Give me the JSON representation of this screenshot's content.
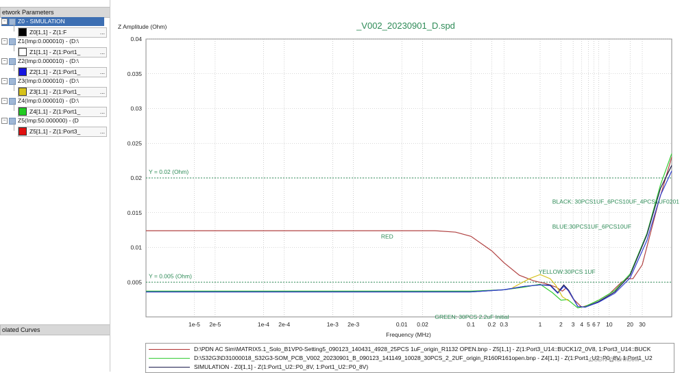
{
  "left_panel": {
    "header": "etwork Parameters",
    "tree": [
      {
        "label": "Z0 - SIMULATION",
        "selected": true
      },
      {
        "sub": "Z0[1,1] - Z(1:F",
        "dots": "...",
        "color": "#000000"
      },
      {
        "label": "Z1(Imp:0.000010) - (D:\\"
      },
      {
        "sub": "Z1[1,1] - Z(1:Port1_",
        "dots": "...",
        "color": "#ffffff"
      },
      {
        "label": "Z2(Imp:0.000010) - (D:\\"
      },
      {
        "sub": "Z2[1,1] - Z(1:Port1_",
        "dots": "...",
        "color": "#1515e0"
      },
      {
        "label": "Z3(Imp:0.000010) - (D:\\"
      },
      {
        "sub": "Z3[1,1] - Z(1:Port1_",
        "dots": "...",
        "color": "#d6c21a"
      },
      {
        "label": "Z4(Imp:0.000010) - (D:\\"
      },
      {
        "sub": "Z4[1,1] - Z(1:Port1_",
        "dots": "...",
        "color": "#22cc22"
      },
      {
        "label": "Z5(Imp:50.000000) - (D"
      },
      {
        "sub": "Z5[1,1] - Z(1:Port3_",
        "dots": "...",
        "color": "#e01010"
      }
    ],
    "isolated_header": "olated Curves"
  },
  "legend": [
    {
      "text": "D:\\PDN AC Sim\\MATRIX5.1_Solo_B1VP0-Setting5_090123_140431_4928_25PCS 1uF_origin_R1132 OPEN.bnp - Z5[1,1] - Z(1:Port3_U14::BUCK1/2_0V8, 1:Port3_U14::BUCK",
      "color": "#b03030"
    },
    {
      "text": "D:\\S32G3\\D31000018_S32G3-SOM_PCB_V002_20230901_B_090123_141149_10028_30PCS_2_2UF_origin_R160R161open.bnp - Z4[1,1] - Z(1:Port1_U2::P0_8V, 1:Port1_U2",
      "color": "#33cc33"
    },
    {
      "text": "SIMULATION - Z0[1,1] - Z(1:Port1_U2::P0_8V, 1:Port1_U2::P0_8V)",
      "color": "#1a1a4a"
    }
  ],
  "watermark": "CSDN @fdHhbow",
  "chart_data": {
    "type": "line",
    "title": "_V002_20230901_D.spd",
    "ylabel": "Z Amplitude (Ohm)",
    "xlabel": "Frequency (MHz)",
    "x_scale": "log",
    "xlim": [
      2e-06,
      80
    ],
    "ylim": [
      0,
      0.04
    ],
    "grid": true,
    "x_ticks": [
      {
        "v": 1e-05,
        "l": "1e-5"
      },
      {
        "v": 2e-05,
        "l": "2e-5"
      },
      {
        "v": 0.0001,
        "l": "1e-4"
      },
      {
        "v": 0.0002,
        "l": "2e-4"
      },
      {
        "v": 0.001,
        "l": "1e-3"
      },
      {
        "v": 0.002,
        "l": "2e-3"
      },
      {
        "v": 0.01,
        "l": "0.01"
      },
      {
        "v": 0.02,
        "l": "0.02"
      },
      {
        "v": 0.1,
        "l": "0.1"
      },
      {
        "v": 0.2,
        "l": "0.2"
      },
      {
        "v": 0.3,
        "l": "0.3"
      },
      {
        "v": 1,
        "l": "1"
      },
      {
        "v": 2,
        "l": "2"
      },
      {
        "v": 3,
        "l": "3"
      },
      {
        "v": 4,
        "l": "4"
      },
      {
        "v": 5,
        "l": "5"
      },
      {
        "v": 6,
        "l": "6"
      },
      {
        "v": 7,
        "l": "7"
      },
      {
        "v": 10,
        "l": "10"
      },
      {
        "v": 20,
        "l": "20"
      },
      {
        "v": 30,
        "l": "30"
      }
    ],
    "y_ticks": [
      {
        "v": 0.005,
        "l": "0.005"
      },
      {
        "v": 0.01,
        "l": "0.01"
      },
      {
        "v": 0.015,
        "l": "0.015"
      },
      {
        "v": 0.02,
        "l": "0.02"
      },
      {
        "v": 0.025,
        "l": "0.025"
      },
      {
        "v": 0.03,
        "l": "0.03"
      },
      {
        "v": 0.035,
        "l": "0.035"
      },
      {
        "v": 0.04,
        "l": "0.04"
      }
    ],
    "reference_lines": [
      {
        "y": 0.02,
        "label": "Y = 0.02 (Ohm)"
      },
      {
        "y": 0.005,
        "label": "Y = 0.005 (Ohm)"
      }
    ],
    "annotations": [
      {
        "x": 0.005,
        "y": 0.0113,
        "text": "RED"
      },
      {
        "x": 1.5,
        "y": 0.0163,
        "text": "BLACK: 30PCS1UF_6PCS10UF_4PCS1UF0201"
      },
      {
        "x": 1.5,
        "y": 0.0127,
        "text": "BLUE:30PCS1UF_6PCS10UF"
      },
      {
        "x": 0.95,
        "y": 0.0062,
        "text": "YELLOW:30PCS 1UF"
      },
      {
        "x": 0.03,
        "y": -0.0003,
        "text": "GREEN: 30PCS 2.2uF Initial"
      }
    ],
    "series": [
      {
        "color": "#b04040",
        "points": [
          [
            2e-06,
            0.0124
          ],
          [
            0.001,
            0.0124
          ],
          [
            0.03,
            0.0124
          ],
          [
            0.06,
            0.0122
          ],
          [
            0.1,
            0.0116
          ],
          [
            0.2,
            0.0095
          ],
          [
            0.3,
            0.0078
          ],
          [
            0.5,
            0.006
          ],
          [
            0.8,
            0.0052
          ],
          [
            1.2,
            0.0048
          ],
          [
            1.7,
            0.0043
          ],
          [
            2.1,
            0.0037
          ],
          [
            2.4,
            0.0042
          ],
          [
            3,
            0.0026
          ],
          [
            4,
            0.0014
          ],
          [
            5,
            0.0017
          ],
          [
            7,
            0.0024
          ],
          [
            10,
            0.0033
          ],
          [
            15,
            0.005
          ],
          [
            18,
            0.0055
          ],
          [
            22,
            0.0055
          ],
          [
            30,
            0.0075
          ],
          [
            50,
            0.016
          ],
          [
            80,
            0.023
          ]
        ]
      },
      {
        "color": "#33cc33",
        "points": [
          [
            2e-06,
            0.0037
          ],
          [
            0.1,
            0.0037
          ],
          [
            0.3,
            0.0039
          ],
          [
            0.6,
            0.0043
          ],
          [
            1,
            0.0047
          ],
          [
            1.5,
            0.0035
          ],
          [
            2,
            0.0024
          ],
          [
            2.5,
            0.0025
          ],
          [
            3.5,
            0.0013
          ],
          [
            4.5,
            0.0015
          ],
          [
            7,
            0.0024
          ],
          [
            12,
            0.0038
          ],
          [
            20,
            0.0062
          ],
          [
            35,
            0.012
          ],
          [
            55,
            0.019
          ],
          [
            80,
            0.0235
          ]
        ]
      },
      {
        "color": "#1a1a4a",
        "points": [
          [
            2e-06,
            0.0036
          ],
          [
            0.1,
            0.0036
          ],
          [
            0.3,
            0.0039
          ],
          [
            0.6,
            0.0044
          ],
          [
            1,
            0.0046
          ],
          [
            1.4,
            0.0046
          ],
          [
            1.8,
            0.0035
          ],
          [
            2.2,
            0.0046
          ],
          [
            2.6,
            0.0038
          ],
          [
            3.5,
            0.0015
          ],
          [
            4.5,
            0.0014
          ],
          [
            7,
            0.0022
          ],
          [
            12,
            0.0036
          ],
          [
            20,
            0.006
          ],
          [
            35,
            0.0118
          ],
          [
            55,
            0.0185
          ],
          [
            80,
            0.0218
          ]
        ]
      },
      {
        "color": "#2f3fd0",
        "points": [
          [
            2e-06,
            0.0036
          ],
          [
            0.1,
            0.0036
          ],
          [
            0.3,
            0.0039
          ],
          [
            0.6,
            0.0044
          ],
          [
            1,
            0.0046
          ],
          [
            1.4,
            0.0045
          ],
          [
            1.8,
            0.0034
          ],
          [
            2.2,
            0.0044
          ],
          [
            2.6,
            0.0037
          ],
          [
            3.5,
            0.0015
          ],
          [
            4.5,
            0.0014
          ],
          [
            7,
            0.0021
          ],
          [
            12,
            0.0034
          ],
          [
            20,
            0.0056
          ],
          [
            35,
            0.011
          ],
          [
            55,
            0.0175
          ],
          [
            80,
            0.021
          ]
        ]
      },
      {
        "color": "#d6c21a",
        "points": [
          [
            0.4,
            0.0042
          ],
          [
            0.7,
            0.0055
          ],
          [
            1,
            0.0061
          ],
          [
            1.4,
            0.0055
          ],
          [
            1.7,
            0.0045
          ],
          [
            2.1,
            0.0029
          ],
          [
            2.6,
            0.0023
          ]
        ]
      }
    ]
  }
}
